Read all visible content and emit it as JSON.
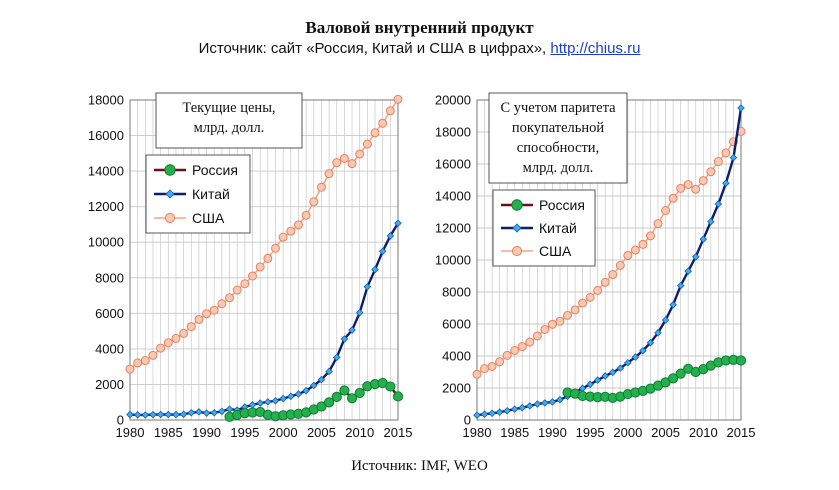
{
  "header": {
    "title": "Валовой внутренний продукт",
    "subtitle_prefix": "Источник: сайт «Россия, Китай и США в цифрах»,",
    "subtitle_link": "http://chius.ru"
  },
  "footer": {
    "source": "Источник: IMF, WEO"
  },
  "colors": {
    "russia_line": "#6b0f1a",
    "russia_marker": "#22b14c",
    "china_line": "#0b1f6e",
    "china_marker": "#3fa9f5",
    "usa_line": "#f4a58a",
    "usa_marker": "#f7c9b3",
    "grid": "#c8c8c8"
  },
  "chart_data": [
    {
      "type": "line",
      "title_lines": [
        "Текущие цены,",
        "млрд. долл."
      ],
      "ylim": [
        0,
        18000
      ],
      "yticks": [
        "0",
        "2000",
        "4000",
        "6000",
        "8000",
        "10000",
        "12000",
        "14000",
        "16000",
        "18000"
      ],
      "xlim": [
        1980,
        2015
      ],
      "xticks": [
        "1980",
        "1985",
        "1990",
        "1995",
        "2000",
        "2005",
        "2010",
        "2015"
      ],
      "legend": [
        "Россия",
        "Китай",
        "США"
      ],
      "series": [
        {
          "name": "Россия",
          "x": [
            1993,
            1994,
            1995,
            1996,
            1997,
            1998,
            1999,
            2000,
            2001,
            2002,
            2003,
            2004,
            2005,
            2006,
            2007,
            2008,
            2009,
            2010,
            2011,
            2012,
            2013,
            2014,
            2015
          ],
          "y": [
            180,
            280,
            380,
            420,
            450,
            290,
            210,
            260,
            310,
            350,
            430,
            590,
            760,
            990,
            1300,
            1660,
            1220,
            1520,
            1900,
            2020,
            2080,
            1880,
            1330
          ]
        },
        {
          "name": "Китай",
          "x": [
            1980,
            1981,
            1982,
            1983,
            1984,
            1985,
            1986,
            1987,
            1988,
            1989,
            1990,
            1991,
            1992,
            1993,
            1994,
            1995,
            1996,
            1997,
            1998,
            1999,
            2000,
            2001,
            2002,
            2003,
            2004,
            2005,
            2006,
            2007,
            2008,
            2009,
            2010,
            2011,
            2012,
            2013,
            2014,
            2015
          ],
          "y": [
            306,
            289,
            283,
            302,
            311,
            309,
            300,
            326,
            407,
            456,
            390,
            409,
            488,
            613,
            559,
            728,
            856,
            952,
            1019,
            1083,
            1205,
            1332,
            1461,
            1649,
            1941,
            2268,
            2730,
            3523,
            4558,
            5059,
            6039,
            7492,
            8462,
            9490,
            10354,
            11065
          ]
        },
        {
          "name": "США",
          "x": [
            1980,
            1981,
            1982,
            1983,
            1984,
            1985,
            1986,
            1987,
            1988,
            1989,
            1990,
            1991,
            1992,
            1993,
            1994,
            1995,
            1996,
            1997,
            1998,
            1999,
            2000,
            2001,
            2002,
            2003,
            2004,
            2005,
            2006,
            2007,
            2008,
            2009,
            2010,
            2011,
            2012,
            2013,
            2014,
            2015
          ],
          "y": [
            2863,
            3211,
            3345,
            3638,
            4041,
            4347,
            4590,
            4870,
            5253,
            5658,
            5980,
            6174,
            6539,
            6879,
            7309,
            7664,
            8100,
            8609,
            9089,
            9661,
            10285,
            10622,
            10978,
            11511,
            12275,
            13094,
            13856,
            14478,
            14719,
            14419,
            14964,
            15518,
            16155,
            16692,
            17393,
            18037
          ]
        }
      ]
    },
    {
      "type": "line",
      "title_lines": [
        "С учетом паритета",
        "покупательной",
        "способности,",
        "млрд. долл."
      ],
      "ylim": [
        0,
        20000
      ],
      "yticks": [
        "0",
        "2000",
        "4000",
        "6000",
        "8000",
        "10000",
        "12000",
        "14000",
        "16000",
        "18000",
        "20000"
      ],
      "xlim": [
        1980,
        2015
      ],
      "xticks": [
        "1980",
        "1985",
        "1990",
        "1995",
        "2000",
        "2005",
        "2010",
        "2015"
      ],
      "legend": [
        "Россия",
        "Китай",
        "США"
      ],
      "series": [
        {
          "name": "Россия",
          "x": [
            1992,
            1993,
            1994,
            1995,
            1996,
            1997,
            1998,
            1999,
            2000,
            2001,
            2002,
            2003,
            2004,
            2005,
            2006,
            2007,
            2008,
            2009,
            2010,
            2011,
            2012,
            2013,
            2014,
            2015
          ],
          "y": [
            1720,
            1650,
            1500,
            1460,
            1430,
            1450,
            1380,
            1460,
            1620,
            1720,
            1820,
            1960,
            2150,
            2350,
            2600,
            2900,
            3200,
            3000,
            3180,
            3400,
            3600,
            3720,
            3760,
            3720
          ]
        },
        {
          "name": "Китай",
          "x": [
            1980,
            1981,
            1982,
            1983,
            1984,
            1985,
            1986,
            1987,
            1988,
            1989,
            1990,
            1991,
            1992,
            1993,
            1994,
            1995,
            1996,
            1997,
            1998,
            1999,
            2000,
            2001,
            2002,
            2003,
            2004,
            2005,
            2006,
            2007,
            2008,
            2009,
            2010,
            2011,
            2012,
            2013,
            2014,
            2015
          ],
          "y": [
            300,
            360,
            420,
            490,
            580,
            680,
            770,
            880,
            1000,
            1070,
            1130,
            1270,
            1480,
            1720,
            1980,
            2230,
            2490,
            2750,
            2980,
            3240,
            3580,
            3930,
            4330,
            4830,
            5450,
            6250,
            7200,
            8400,
            9300,
            10200,
            11300,
            12400,
            13500,
            14800,
            16400,
            19500
          ]
        },
        {
          "name": "США",
          "x": [
            1980,
            1981,
            1982,
            1983,
            1984,
            1985,
            1986,
            1987,
            1988,
            1989,
            1990,
            1991,
            1992,
            1993,
            1994,
            1995,
            1996,
            1997,
            1998,
            1999,
            2000,
            2001,
            2002,
            2003,
            2004,
            2005,
            2006,
            2007,
            2008,
            2009,
            2010,
            2011,
            2012,
            2013,
            2014,
            2015
          ],
          "y": [
            2863,
            3211,
            3345,
            3638,
            4041,
            4347,
            4590,
            4870,
            5253,
            5658,
            5980,
            6174,
            6539,
            6879,
            7309,
            7664,
            8100,
            8609,
            9089,
            9661,
            10285,
            10622,
            10978,
            11511,
            12275,
            13094,
            13856,
            14478,
            14719,
            14419,
            14964,
            15518,
            16155,
            16692,
            17393,
            18037
          ]
        }
      ]
    }
  ]
}
